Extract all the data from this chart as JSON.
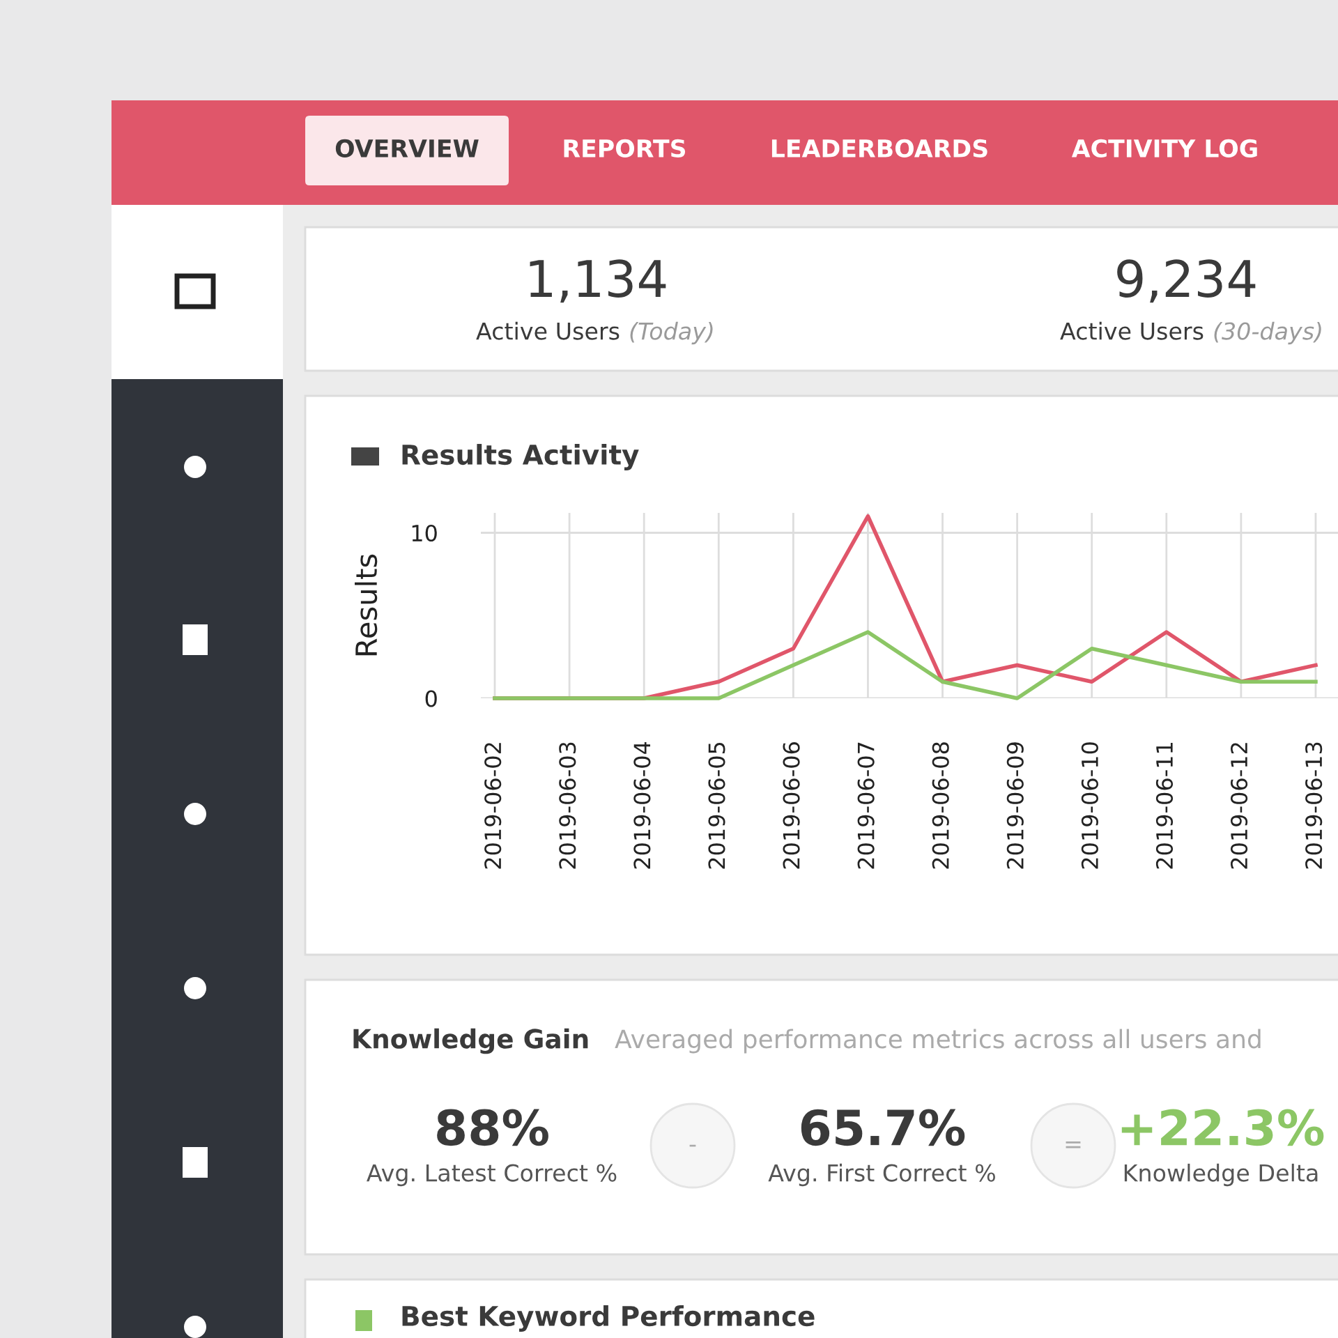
{
  "chart_data": [
    {
      "type": "other",
      "annotations": [
        "OVERVIEW",
        "REPORTS",
        "LEADERBOARDS",
        "ACTIVITY LOG",
        "1,134",
        "Active Users",
        "(Today)",
        "9,234",
        "Active Users",
        "(30-days)"
      ]
    },
    {
      "type": "line",
      "title": "Results Activity",
      "ylabel": "Results",
      "categories": [
        "2019-06-02",
        "2019-06-03",
        "2019-06-04",
        "2019-06-05",
        "2019-06-06",
        "2019-06-07",
        "2019-06-08",
        "2019-06-09",
        "2019-06-10",
        "2019-06-11",
        "2019-06-12",
        "2019-06-13"
      ],
      "series": [
        {
          "color": "#e0566a",
          "values": [
            0,
            0,
            0,
            1,
            3,
            11,
            1,
            2,
            1,
            4,
            1,
            2
          ]
        },
        {
          "color": "#8cc665",
          "values": [
            0,
            0,
            0,
            0,
            2,
            4,
            1,
            0,
            3,
            2,
            1,
            1
          ]
        }
      ],
      "ylim": [
        0,
        11.2
      ],
      "yticks": [
        0,
        10
      ],
      "grid": true,
      "line_style": "solid"
    },
    {
      "type": "other",
      "title": "Knowledge Gain",
      "subtitle": "Averaged performance metrics across all users and",
      "annotations": [
        "88%",
        "Avg. Latest Correct %",
        "-",
        "65.7%",
        "Avg. First Correct %",
        "=",
        "+22.3%",
        "Knowledge Delta"
      ]
    },
    {
      "type": "other",
      "title": "Best Keyword Performance"
    }
  ]
}
